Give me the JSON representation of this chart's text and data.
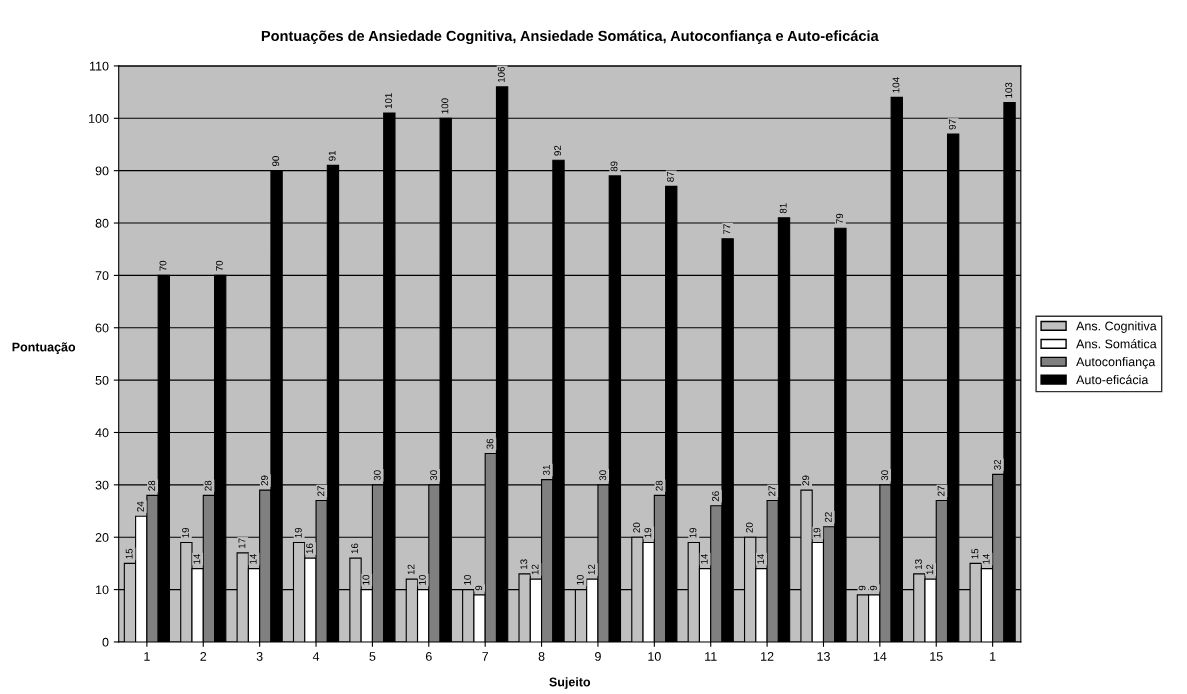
{
  "chart_data": {
    "type": "bar",
    "title": "Pontuações de Ansiedade Cognitiva, Ansiedade Somática, Autoconfiança e Auto-eficácia",
    "xlabel": "Sujeito",
    "ylabel": "Pontuação",
    "categories": [
      "1",
      "2",
      "3",
      "4",
      "5",
      "6",
      "7",
      "8",
      "9",
      "10",
      "11",
      "12",
      "13",
      "14",
      "15",
      "1"
    ],
    "series": [
      {
        "name": "Ans. Cognitiva",
        "color": "#c0c0c0",
        "values": [
          15,
          19,
          17,
          19,
          16,
          12,
          10,
          13,
          10,
          20,
          19,
          20,
          29,
          9,
          13,
          15
        ]
      },
      {
        "name": "Ans. Somática",
        "color": "#ffffff",
        "values": [
          24,
          14,
          14,
          16,
          10,
          10,
          9,
          12,
          12,
          19,
          14,
          14,
          19,
          9,
          12,
          14
        ]
      },
      {
        "name": "Autoconfiança",
        "color": "#808080",
        "values": [
          28,
          28,
          29,
          27,
          30,
          30,
          36,
          31,
          30,
          28,
          26,
          27,
          22,
          30,
          27,
          32
        ]
      },
      {
        "name": "Auto-eficácia",
        "color": "#000000",
        "values": [
          70,
          70,
          90,
          91,
          101,
          100,
          106,
          92,
          89,
          87,
          77,
          81,
          79,
          104,
          97,
          103
        ]
      }
    ],
    "ylim": [
      0,
      110
    ],
    "yticks": [
      0,
      10,
      20,
      30,
      40,
      50,
      60,
      70,
      80,
      90,
      100,
      110
    ],
    "grid": "y",
    "legend": "right",
    "data_labels": true
  }
}
